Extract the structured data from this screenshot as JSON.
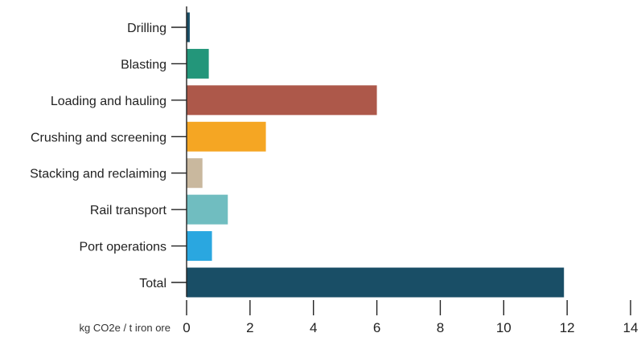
{
  "chart_data": {
    "type": "bar",
    "orientation": "horizontal",
    "categories": [
      "Drilling",
      "Blasting",
      "Loading and hauling",
      "Crushing and screening",
      "Stacking and reclaiming",
      "Rail transport",
      "Port operations",
      "Total"
    ],
    "values": [
      0.1,
      0.7,
      6.0,
      2.5,
      0.5,
      1.3,
      0.8,
      11.9
    ],
    "colors": [
      "#194e66",
      "#23967a",
      "#ad584a",
      "#f5a623",
      "#c9b89e",
      "#70bdc0",
      "#2aa7e0",
      "#194e66"
    ],
    "xlabel": "kg CO2e / t iron ore",
    "xlim": [
      0,
      14
    ],
    "xticks": [
      "0",
      "2",
      "4",
      "6",
      "8",
      "10",
      "12",
      "14"
    ],
    "grid": false,
    "legend": "none"
  }
}
